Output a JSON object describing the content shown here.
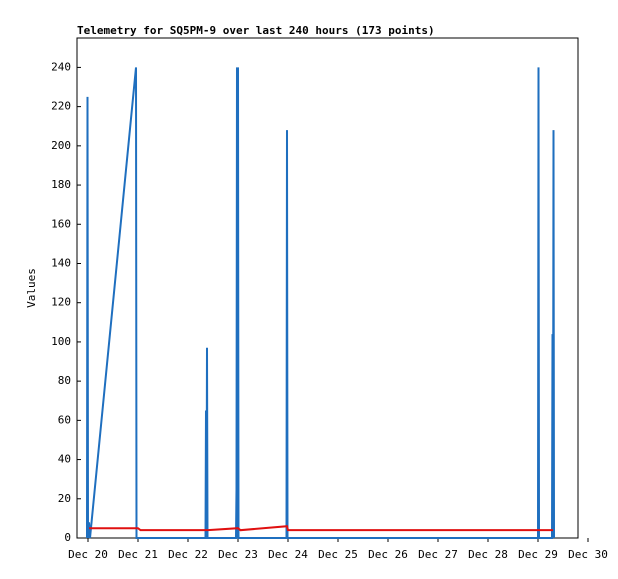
{
  "chart_data": {
    "type": "line",
    "title": "Telemetry for SQ5PM-9 over last 240 hours (173 points)",
    "y_label": "Values",
    "xlim": [
      19.78,
      29.8
    ],
    "xticks": [
      {
        "value": 20,
        "label": "Dec 20"
      },
      {
        "value": 21,
        "label": "Dec 21"
      },
      {
        "value": 22,
        "label": "Dec 22"
      },
      {
        "value": 23,
        "label": "Dec 23"
      },
      {
        "value": 24,
        "label": "Dec 24"
      },
      {
        "value": 25,
        "label": "Dec 25"
      },
      {
        "value": 26,
        "label": "Dec 26"
      },
      {
        "value": 27,
        "label": "Dec 27"
      },
      {
        "value": 28,
        "label": "Dec 28"
      },
      {
        "value": 29,
        "label": "Dec 29"
      },
      {
        "value": 30,
        "label": "Dec 30"
      }
    ],
    "ylim": [
      0,
      255
    ],
    "yticks": [
      0,
      20,
      40,
      60,
      80,
      100,
      120,
      140,
      160,
      180,
      200,
      220,
      240
    ],
    "grid": false,
    "series": [
      {
        "color": "#1f6fbf",
        "x": [
          19.98,
          19.99,
          20.0,
          20.02,
          20.04,
          20.96,
          20.97,
          22.35,
          22.36,
          22.37,
          22.38,
          22.39,
          22.96,
          22.97,
          22.98,
          22.99,
          23.0,
          23.01,
          23.97,
          23.98,
          23.99,
          29.0,
          29.01,
          29.02,
          29.28,
          29.29,
          29.3,
          29.31,
          29.32
        ],
        "values": [
          0,
          225,
          0,
          8,
          0,
          240,
          0,
          0,
          65,
          0,
          97,
          0,
          0,
          25,
          240,
          0,
          240,
          0,
          0,
          208,
          0,
          0,
          240,
          0,
          0,
          104,
          0,
          208,
          0
        ]
      },
      {
        "color": "#e01010",
        "x": [
          20.02,
          21.0,
          21.05,
          22.4,
          23.0,
          23.05,
          23.98,
          24.0,
          29.3
        ],
        "values": [
          5,
          5,
          4,
          4,
          5,
          4,
          6,
          4,
          4
        ]
      }
    ]
  }
}
